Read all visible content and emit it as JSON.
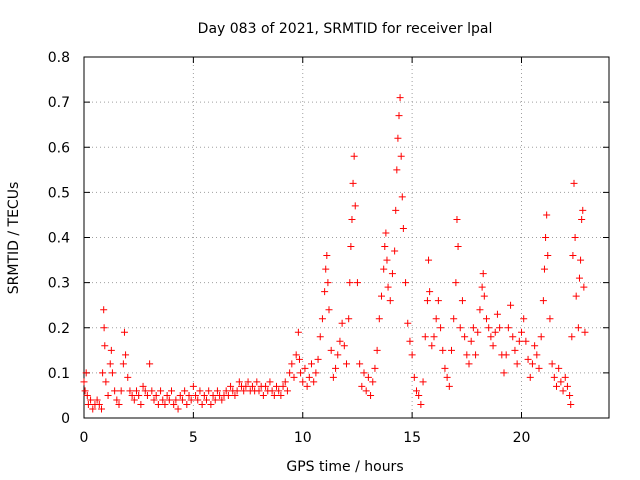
{
  "chart_data": {
    "type": "scatter",
    "title": "Day 083 of 2021, SRMTID for receiver lpal",
    "xlabel": "GPS time / hours",
    "ylabel": "SRMTID / TECUs",
    "xlim": [
      0,
      24
    ],
    "ylim": [
      0,
      0.8
    ],
    "xticks": [
      0,
      5,
      10,
      15,
      20
    ],
    "xtick_labels": [
      "0",
      "5",
      "10",
      "15",
      "20"
    ],
    "yticks": [
      0,
      0.1,
      0.2,
      0.3,
      0.4,
      0.5,
      0.6,
      0.7,
      0.8
    ],
    "ytick_labels": [
      "0",
      "0.1",
      "0.2",
      "0.3",
      "0.4",
      "0.5",
      "0.6",
      "0.7",
      "0.8"
    ],
    "grid": true,
    "marker": "plus",
    "series": [
      {
        "name": "SRMTID",
        "color": "#ff0000",
        "points": [
          [
            0.0,
            0.08
          ],
          [
            0.05,
            0.06
          ],
          [
            0.1,
            0.1
          ],
          [
            0.15,
            0.05
          ],
          [
            0.2,
            0.03
          ],
          [
            0.3,
            0.04
          ],
          [
            0.4,
            0.02
          ],
          [
            0.5,
            0.03
          ],
          [
            0.6,
            0.04
          ],
          [
            0.7,
            0.03
          ],
          [
            0.8,
            0.02
          ],
          [
            0.85,
            0.1
          ],
          [
            0.9,
            0.24
          ],
          [
            0.92,
            0.2
          ],
          [
            0.95,
            0.16
          ],
          [
            1.0,
            0.08
          ],
          [
            1.1,
            0.05
          ],
          [
            1.2,
            0.12
          ],
          [
            1.25,
            0.15
          ],
          [
            1.3,
            0.1
          ],
          [
            1.4,
            0.06
          ],
          [
            1.5,
            0.04
          ],
          [
            1.6,
            0.03
          ],
          [
            1.7,
            0.06
          ],
          [
            1.8,
            0.12
          ],
          [
            1.85,
            0.19
          ],
          [
            1.9,
            0.14
          ],
          [
            2.0,
            0.09
          ],
          [
            2.1,
            0.06
          ],
          [
            2.2,
            0.05
          ],
          [
            2.3,
            0.04
          ],
          [
            2.4,
            0.06
          ],
          [
            2.5,
            0.05
          ],
          [
            2.6,
            0.03
          ],
          [
            2.7,
            0.07
          ],
          [
            2.8,
            0.06
          ],
          [
            2.9,
            0.05
          ],
          [
            3.0,
            0.12
          ],
          [
            3.1,
            0.06
          ],
          [
            3.2,
            0.04
          ],
          [
            3.3,
            0.05
          ],
          [
            3.4,
            0.03
          ],
          [
            3.5,
            0.06
          ],
          [
            3.6,
            0.04
          ],
          [
            3.7,
            0.03
          ],
          [
            3.8,
            0.05
          ],
          [
            3.9,
            0.04
          ],
          [
            4.0,
            0.06
          ],
          [
            4.1,
            0.03
          ],
          [
            4.2,
            0.04
          ],
          [
            4.3,
            0.02
          ],
          [
            4.4,
            0.05
          ],
          [
            4.5,
            0.04
          ],
          [
            4.6,
            0.06
          ],
          [
            4.7,
            0.03
          ],
          [
            4.8,
            0.05
          ],
          [
            4.9,
            0.04
          ],
          [
            5.0,
            0.07
          ],
          [
            5.1,
            0.05
          ],
          [
            5.2,
            0.04
          ],
          [
            5.3,
            0.06
          ],
          [
            5.4,
            0.03
          ],
          [
            5.5,
            0.05
          ],
          [
            5.6,
            0.04
          ],
          [
            5.7,
            0.06
          ],
          [
            5.8,
            0.03
          ],
          [
            5.9,
            0.05
          ],
          [
            6.0,
            0.04
          ],
          [
            6.1,
            0.06
          ],
          [
            6.2,
            0.05
          ],
          [
            6.3,
            0.04
          ],
          [
            6.4,
            0.05
          ],
          [
            6.5,
            0.06
          ],
          [
            6.6,
            0.05
          ],
          [
            6.7,
            0.07
          ],
          [
            6.8,
            0.06
          ],
          [
            6.9,
            0.05
          ],
          [
            7.0,
            0.06
          ],
          [
            7.1,
            0.08
          ],
          [
            7.2,
            0.07
          ],
          [
            7.3,
            0.06
          ],
          [
            7.4,
            0.07
          ],
          [
            7.5,
            0.08
          ],
          [
            7.6,
            0.06
          ],
          [
            7.7,
            0.07
          ],
          [
            7.8,
            0.06
          ],
          [
            7.9,
            0.08
          ],
          [
            8.0,
            0.06
          ],
          [
            8.1,
            0.07
          ],
          [
            8.2,
            0.05
          ],
          [
            8.3,
            0.07
          ],
          [
            8.4,
            0.06
          ],
          [
            8.5,
            0.08
          ],
          [
            8.6,
            0.06
          ],
          [
            8.7,
            0.05
          ],
          [
            8.8,
            0.07
          ],
          [
            8.9,
            0.06
          ],
          [
            9.0,
            0.05
          ],
          [
            9.1,
            0.07
          ],
          [
            9.2,
            0.08
          ],
          [
            9.3,
            0.06
          ],
          [
            9.4,
            0.1
          ],
          [
            9.5,
            0.12
          ],
          [
            9.6,
            0.09
          ],
          [
            9.7,
            0.14
          ],
          [
            9.8,
            0.19
          ],
          [
            9.85,
            0.13
          ],
          [
            9.9,
            0.1
          ],
          [
            10.0,
            0.08
          ],
          [
            10.1,
            0.11
          ],
          [
            10.2,
            0.07
          ],
          [
            10.3,
            0.09
          ],
          [
            10.4,
            0.12
          ],
          [
            10.5,
            0.08
          ],
          [
            10.6,
            0.1
          ],
          [
            10.7,
            0.13
          ],
          [
            10.8,
            0.18
          ],
          [
            10.9,
            0.22
          ],
          [
            11.0,
            0.28
          ],
          [
            11.05,
            0.33
          ],
          [
            11.1,
            0.36
          ],
          [
            11.15,
            0.3
          ],
          [
            11.2,
            0.24
          ],
          [
            11.3,
            0.15
          ],
          [
            11.4,
            0.09
          ],
          [
            11.5,
            0.11
          ],
          [
            11.6,
            0.14
          ],
          [
            11.7,
            0.17
          ],
          [
            11.8,
            0.21
          ],
          [
            11.9,
            0.16
          ],
          [
            12.0,
            0.12
          ],
          [
            12.1,
            0.22
          ],
          [
            12.15,
            0.3
          ],
          [
            12.2,
            0.38
          ],
          [
            12.25,
            0.44
          ],
          [
            12.3,
            0.52
          ],
          [
            12.35,
            0.58
          ],
          [
            12.4,
            0.47
          ],
          [
            12.5,
            0.3
          ],
          [
            12.6,
            0.12
          ],
          [
            12.7,
            0.07
          ],
          [
            12.8,
            0.1
          ],
          [
            12.9,
            0.06
          ],
          [
            13.0,
            0.09
          ],
          [
            13.1,
            0.05
          ],
          [
            13.2,
            0.08
          ],
          [
            13.3,
            0.11
          ],
          [
            13.4,
            0.15
          ],
          [
            13.5,
            0.22
          ],
          [
            13.6,
            0.27
          ],
          [
            13.7,
            0.33
          ],
          [
            13.75,
            0.38
          ],
          [
            13.8,
            0.41
          ],
          [
            13.85,
            0.35
          ],
          [
            13.9,
            0.29
          ],
          [
            14.0,
            0.26
          ],
          [
            14.1,
            0.32
          ],
          [
            14.2,
            0.37
          ],
          [
            14.25,
            0.46
          ],
          [
            14.3,
            0.55
          ],
          [
            14.35,
            0.62
          ],
          [
            14.4,
            0.67
          ],
          [
            14.45,
            0.71
          ],
          [
            14.5,
            0.58
          ],
          [
            14.55,
            0.49
          ],
          [
            14.6,
            0.42
          ],
          [
            14.7,
            0.3
          ],
          [
            14.8,
            0.21
          ],
          [
            14.9,
            0.17
          ],
          [
            15.0,
            0.14
          ],
          [
            15.1,
            0.09
          ],
          [
            15.2,
            0.06
          ],
          [
            15.3,
            0.05
          ],
          [
            15.4,
            0.03
          ],
          [
            15.5,
            0.08
          ],
          [
            15.6,
            0.18
          ],
          [
            15.7,
            0.26
          ],
          [
            15.75,
            0.35
          ],
          [
            15.8,
            0.28
          ],
          [
            15.9,
            0.16
          ],
          [
            16.0,
            0.18
          ],
          [
            16.1,
            0.22
          ],
          [
            16.2,
            0.26
          ],
          [
            16.3,
            0.2
          ],
          [
            16.4,
            0.15
          ],
          [
            16.5,
            0.11
          ],
          [
            16.6,
            0.09
          ],
          [
            16.7,
            0.07
          ],
          [
            16.8,
            0.15
          ],
          [
            16.9,
            0.22
          ],
          [
            17.0,
            0.3
          ],
          [
            17.05,
            0.44
          ],
          [
            17.1,
            0.38
          ],
          [
            17.2,
            0.2
          ],
          [
            17.3,
            0.26
          ],
          [
            17.4,
            0.18
          ],
          [
            17.5,
            0.14
          ],
          [
            17.6,
            0.12
          ],
          [
            17.7,
            0.17
          ],
          [
            17.8,
            0.2
          ],
          [
            17.9,
            0.14
          ],
          [
            18.0,
            0.19
          ],
          [
            18.1,
            0.24
          ],
          [
            18.2,
            0.29
          ],
          [
            18.25,
            0.32
          ],
          [
            18.3,
            0.27
          ],
          [
            18.4,
            0.22
          ],
          [
            18.5,
            0.2
          ],
          [
            18.6,
            0.18
          ],
          [
            18.7,
            0.16
          ],
          [
            18.8,
            0.19
          ],
          [
            18.9,
            0.23
          ],
          [
            19.0,
            0.2
          ],
          [
            19.1,
            0.14
          ],
          [
            19.2,
            0.1
          ],
          [
            19.3,
            0.14
          ],
          [
            19.4,
            0.2
          ],
          [
            19.5,
            0.25
          ],
          [
            19.6,
            0.18
          ],
          [
            19.7,
            0.15
          ],
          [
            19.8,
            0.12
          ],
          [
            19.9,
            0.17
          ],
          [
            20.0,
            0.19
          ],
          [
            20.1,
            0.22
          ],
          [
            20.2,
            0.17
          ],
          [
            20.3,
            0.13
          ],
          [
            20.4,
            0.09
          ],
          [
            20.5,
            0.12
          ],
          [
            20.6,
            0.16
          ],
          [
            20.7,
            0.14
          ],
          [
            20.8,
            0.11
          ],
          [
            20.9,
            0.18
          ],
          [
            21.0,
            0.26
          ],
          [
            21.05,
            0.33
          ],
          [
            21.1,
            0.4
          ],
          [
            21.15,
            0.45
          ],
          [
            21.2,
            0.36
          ],
          [
            21.3,
            0.22
          ],
          [
            21.4,
            0.12
          ],
          [
            21.5,
            0.09
          ],
          [
            21.6,
            0.07
          ],
          [
            21.7,
            0.11
          ],
          [
            21.8,
            0.08
          ],
          [
            21.9,
            0.06
          ],
          [
            22.0,
            0.09
          ],
          [
            22.1,
            0.07
          ],
          [
            22.2,
            0.05
          ],
          [
            22.25,
            0.03
          ],
          [
            22.3,
            0.18
          ],
          [
            22.35,
            0.36
          ],
          [
            22.4,
            0.52
          ],
          [
            22.45,
            0.4
          ],
          [
            22.5,
            0.27
          ],
          [
            22.6,
            0.2
          ],
          [
            22.65,
            0.31
          ],
          [
            22.7,
            0.35
          ],
          [
            22.75,
            0.44
          ],
          [
            22.8,
            0.46
          ],
          [
            22.85,
            0.29
          ],
          [
            22.9,
            0.19
          ]
        ]
      }
    ]
  }
}
